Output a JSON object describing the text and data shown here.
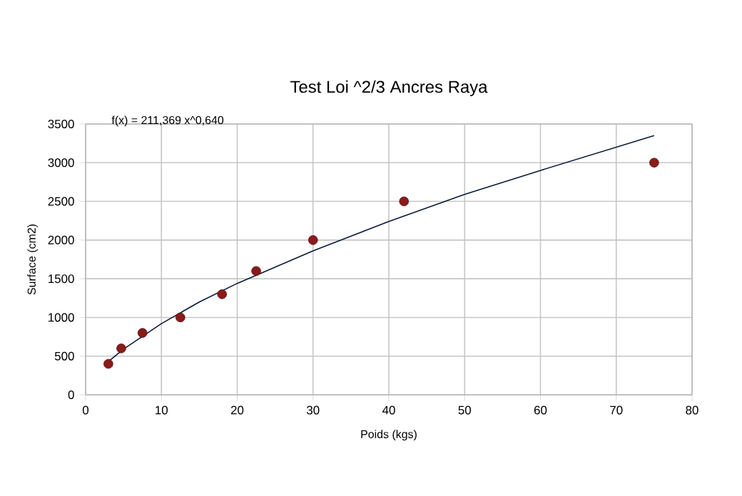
{
  "chart_data": {
    "type": "scatter",
    "title": "Test Loi ^2/3 Ancres Raya",
    "xlabel": "Poids (kgs)",
    "ylabel": "Surface (cm2)",
    "annotations": [
      "f(x) = 211,369 x^0,640"
    ],
    "xlim": [
      0,
      80
    ],
    "xticks": [
      0,
      10,
      20,
      30,
      40,
      50,
      60,
      70,
      80
    ],
    "ylim": [
      0,
      3500
    ],
    "yticks": [
      0,
      500,
      1000,
      1500,
      2000,
      2500,
      3000,
      3500
    ],
    "grid": true,
    "series": [
      {
        "marker": "circle",
        "color": "#8b1a1a",
        "x": [
          3,
          4.7,
          7.5,
          12.5,
          18,
          22.5,
          30,
          42,
          75
        ],
        "values": [
          400,
          600,
          800,
          1000,
          1300,
          1600,
          2000,
          2500,
          3000
        ]
      },
      {
        "type": "line",
        "marker": "none",
        "line_style": "solid",
        "color": "#0a1a3a",
        "x": [
          3,
          5,
          10,
          15,
          20,
          30,
          40,
          50,
          60,
          75
        ],
        "values": [
          430,
          590,
          920,
          1200,
          1440,
          1860,
          2240,
          2590,
          2900,
          3350
        ]
      }
    ]
  }
}
